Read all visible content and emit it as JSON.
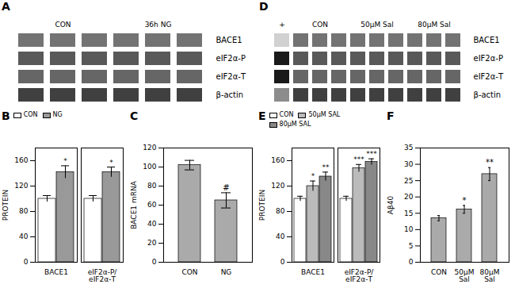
{
  "chart_data": [
    {
      "type": "blot",
      "title": "A",
      "groups": [
        {
          "name": "CON",
          "lanes": 3
        },
        {
          "name": "36h NG",
          "lanes": 3
        }
      ],
      "band_labels": [
        "BACE1",
        "eIF2α-P",
        "eIF2α-T",
        "β-actin"
      ],
      "colors": [
        [
          "#737373",
          "#737373"
        ],
        [
          "#595959",
          "#595959"
        ],
        [
          "#666666",
          "#666666"
        ],
        [
          "#404040",
          "#404040"
        ]
      ]
    },
    {
      "type": "blot",
      "title": "D",
      "groups": [
        {
          "name": "+",
          "lanes": 1
        },
        {
          "name": "CON",
          "lanes": 3
        },
        {
          "name": "50μM Sal",
          "lanes": 3
        },
        {
          "name": "80μM Sal",
          "lanes": 3
        }
      ],
      "band_labels": [
        "BACE1",
        "eIF2α-P",
        "eIF2α-T",
        "β-actin"
      ],
      "colors": [
        [
          "#d1d1d1",
          "#737373",
          "#737373",
          "#737373"
        ],
        [
          "#1a1a1a",
          "#595959",
          "#595959",
          "#595959"
        ],
        [
          "#1a1a1a",
          "#666666",
          "#666666",
          "#666666"
        ],
        [
          "#8c8c8c",
          "#404040",
          "#404040",
          "#404040"
        ]
      ]
    },
    {
      "type": "bar",
      "title": "B",
      "ylabel": "PROTEIN",
      "categories": [
        "BACE1",
        "eIF2α-P/\neIF2α-T"
      ],
      "series": [
        {
          "name": "CON",
          "color": "white",
          "values": [
            100,
            100
          ],
          "errors": [
            5,
            5
          ]
        },
        {
          "name": "NG",
          "color": "#999999",
          "values": [
            142,
            142
          ],
          "errors": [
            10,
            8
          ],
          "significance": [
            "*",
            "*"
          ]
        }
      ],
      "ylim": [
        0,
        180
      ],
      "yticks": [
        0,
        40,
        80,
        120,
        160
      ],
      "legend": "upper left"
    },
    {
      "type": "bar",
      "title": "C",
      "ylabel": "BACE1 mRNA",
      "categories": [
        "CON",
        "NG"
      ],
      "values": [
        102,
        65
      ],
      "errors": [
        5,
        8
      ],
      "colors": [
        "#aaaaaa",
        "#aaaaaa"
      ],
      "significance": [
        null,
        "#"
      ],
      "ylim": [
        0,
        120
      ],
      "yticks": [
        0,
        20,
        40,
        60,
        80,
        100,
        120
      ]
    },
    {
      "type": "bar",
      "title": "E",
      "ylabel": "PROTEIN",
      "categories": [
        "BACE1",
        "eIF2α-P/\neIF2α-T"
      ],
      "series": [
        {
          "name": "CON",
          "color": "white",
          "values": [
            100,
            100
          ],
          "errors": [
            4,
            4
          ]
        },
        {
          "name": "50μM SAL",
          "color": "#bbbbbb",
          "values": [
            120,
            148
          ],
          "errors": [
            8,
            6
          ],
          "significance": [
            "*",
            "***"
          ]
        },
        {
          "name": "80μM SAL",
          "color": "#888888",
          "values": [
            135,
            158
          ],
          "errors": [
            7,
            5
          ],
          "significance": [
            "**",
            "***"
          ]
        }
      ],
      "ylim": [
        0,
        180
      ],
      "yticks": [
        0,
        40,
        80,
        120,
        160
      ],
      "legend": "upper left"
    },
    {
      "type": "bar",
      "title": "F",
      "ylabel": "Aβ40",
      "categories": [
        "CON",
        "50μM\nSal",
        "80μM\nSal"
      ],
      "values": [
        13.5,
        16.2,
        27
      ],
      "errors": [
        0.8,
        1.2,
        2.0
      ],
      "colors": [
        "#aaaaaa",
        "#aaaaaa",
        "#aaaaaa"
      ],
      "significance": [
        null,
        "*",
        "**"
      ],
      "ylim": [
        0,
        35
      ],
      "yticks": [
        0,
        5,
        10,
        15,
        20,
        25,
        30,
        35
      ]
    }
  ]
}
